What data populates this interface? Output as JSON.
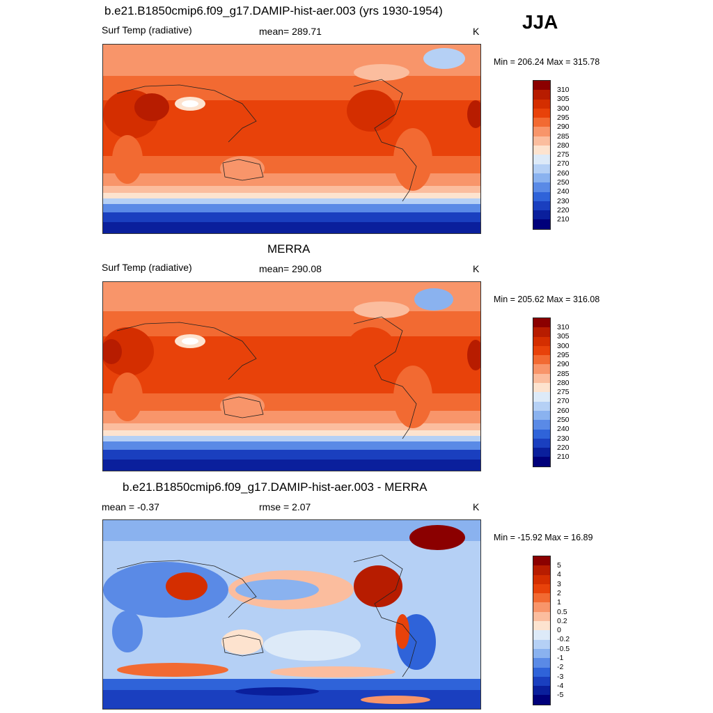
{
  "season": "JJA",
  "panels": [
    {
      "title": "b.e21.B1850cmip6.f09_g17.DAMIP-hist-aer.003 (yrs 1930-1954)",
      "left_label": "Surf Temp (radiative)",
      "center_label": "mean= 289.71",
      "units": "K",
      "minmax": "Min = 206.24 Max = 315.78",
      "colorbar_labels": [
        "310",
        "305",
        "300",
        "295",
        "290",
        "285",
        "280",
        "275",
        "270",
        "260",
        "250",
        "240",
        "230",
        "220",
        "210"
      ]
    },
    {
      "title": "MERRA",
      "left_label": "Surf Temp (radiative)",
      "center_label": "mean= 290.08",
      "units": "K",
      "minmax": "Min = 205.62 Max = 316.08",
      "colorbar_labels": [
        "310",
        "305",
        "300",
        "295",
        "290",
        "285",
        "280",
        "275",
        "270",
        "260",
        "250",
        "240",
        "230",
        "220",
        "210"
      ]
    },
    {
      "title": "b.e21.B1850cmip6.f09_g17.DAMIP-hist-aer.003 - MERRA",
      "left_label": "mean =  -0.37",
      "center_label": "rmse =   2.07",
      "units": "K",
      "minmax": "Min = -15.92 Max =  16.89",
      "colorbar_labels": [
        "5",
        "4",
        "3",
        "2",
        "1",
        "0.5",
        "0.2",
        "0",
        "-0.2",
        "-0.5",
        "-1",
        "-2",
        "-3",
        "-4",
        "-5"
      ]
    }
  ],
  "colors": {
    "abs_scale": [
      "#8b0000",
      "#b71c00",
      "#d42e00",
      "#e8420a",
      "#f26a32",
      "#f8956a",
      "#fbbd9e",
      "#fde3cf",
      "#ddeaf8",
      "#b5d0f5",
      "#8ab2ef",
      "#5a8ae6",
      "#2f63d9",
      "#1a3fbf",
      "#0a1f9c",
      "#00007a"
    ],
    "diff_scale": [
      "#8b0000",
      "#b71c00",
      "#d42e00",
      "#e8420a",
      "#f26a32",
      "#f8956a",
      "#fbbd9e",
      "#fde3cf",
      "#ddeaf8",
      "#b5d0f5",
      "#8ab2ef",
      "#5a8ae6",
      "#2f63d9",
      "#1a3fbf",
      "#0a1f9c",
      "#00007a"
    ]
  }
}
